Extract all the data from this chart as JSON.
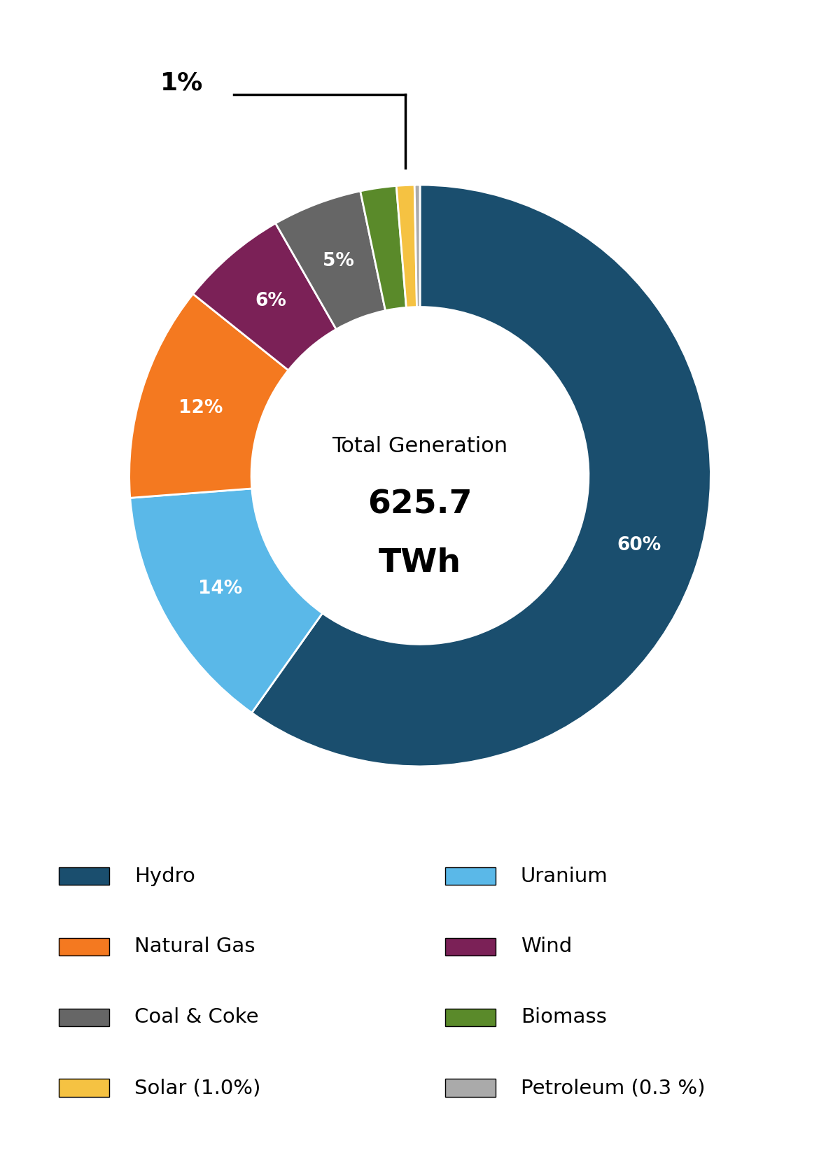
{
  "title_line1": "Total Generation",
  "title_line2": "625.7",
  "title_line3": "TWh",
  "segments": [
    {
      "label": "Hydro",
      "pct": 60,
      "color": "#1a4e6e",
      "text_color": "white",
      "show_label": true,
      "label_pct": "60%"
    },
    {
      "label": "Uranium",
      "pct": 14,
      "color": "#5ab8e8",
      "text_color": "white",
      "show_label": true,
      "label_pct": "14%"
    },
    {
      "label": "Natural Gas",
      "pct": 12,
      "color": "#f47920",
      "text_color": "white",
      "show_label": true,
      "label_pct": "12%"
    },
    {
      "label": "Wind",
      "pct": 6,
      "color": "#7b2157",
      "text_color": "white",
      "show_label": true,
      "label_pct": "6%"
    },
    {
      "label": "Coal & Coke",
      "pct": 5,
      "color": "#666666",
      "text_color": "white",
      "show_label": true,
      "label_pct": "5%"
    },
    {
      "label": "Biomass",
      "pct": 2,
      "color": "#5a8a2a",
      "text_color": "white",
      "show_label": false,
      "label_pct": ""
    },
    {
      "label": "Solar (1.0%)",
      "pct": 1,
      "color": "#f5c242",
      "text_color": "white",
      "show_label": false,
      "label_pct": ""
    },
    {
      "label": "Petroleum (0.3 %)",
      "pct": 0.3,
      "color": "#aaaaaa",
      "text_color": "white",
      "show_label": false,
      "label_pct": ""
    }
  ],
  "annotation_pct": "1%",
  "legend_items_left": [
    {
      "label": "Hydro",
      "color": "#1a4e6e"
    },
    {
      "label": "Natural Gas",
      "color": "#f47920"
    },
    {
      "label": "Coal & Coke",
      "color": "#666666"
    },
    {
      "label": "Solar (1.0%)",
      "color": "#f5c242"
    }
  ],
  "legend_items_right": [
    {
      "label": "Uranium",
      "color": "#5ab8e8"
    },
    {
      "label": "Wind",
      "color": "#7b2157"
    },
    {
      "label": "Biomass",
      "color": "#5a8a2a"
    },
    {
      "label": "Petroleum (0.3 %)",
      "color": "#aaaaaa"
    }
  ],
  "background_color": "#ffffff"
}
